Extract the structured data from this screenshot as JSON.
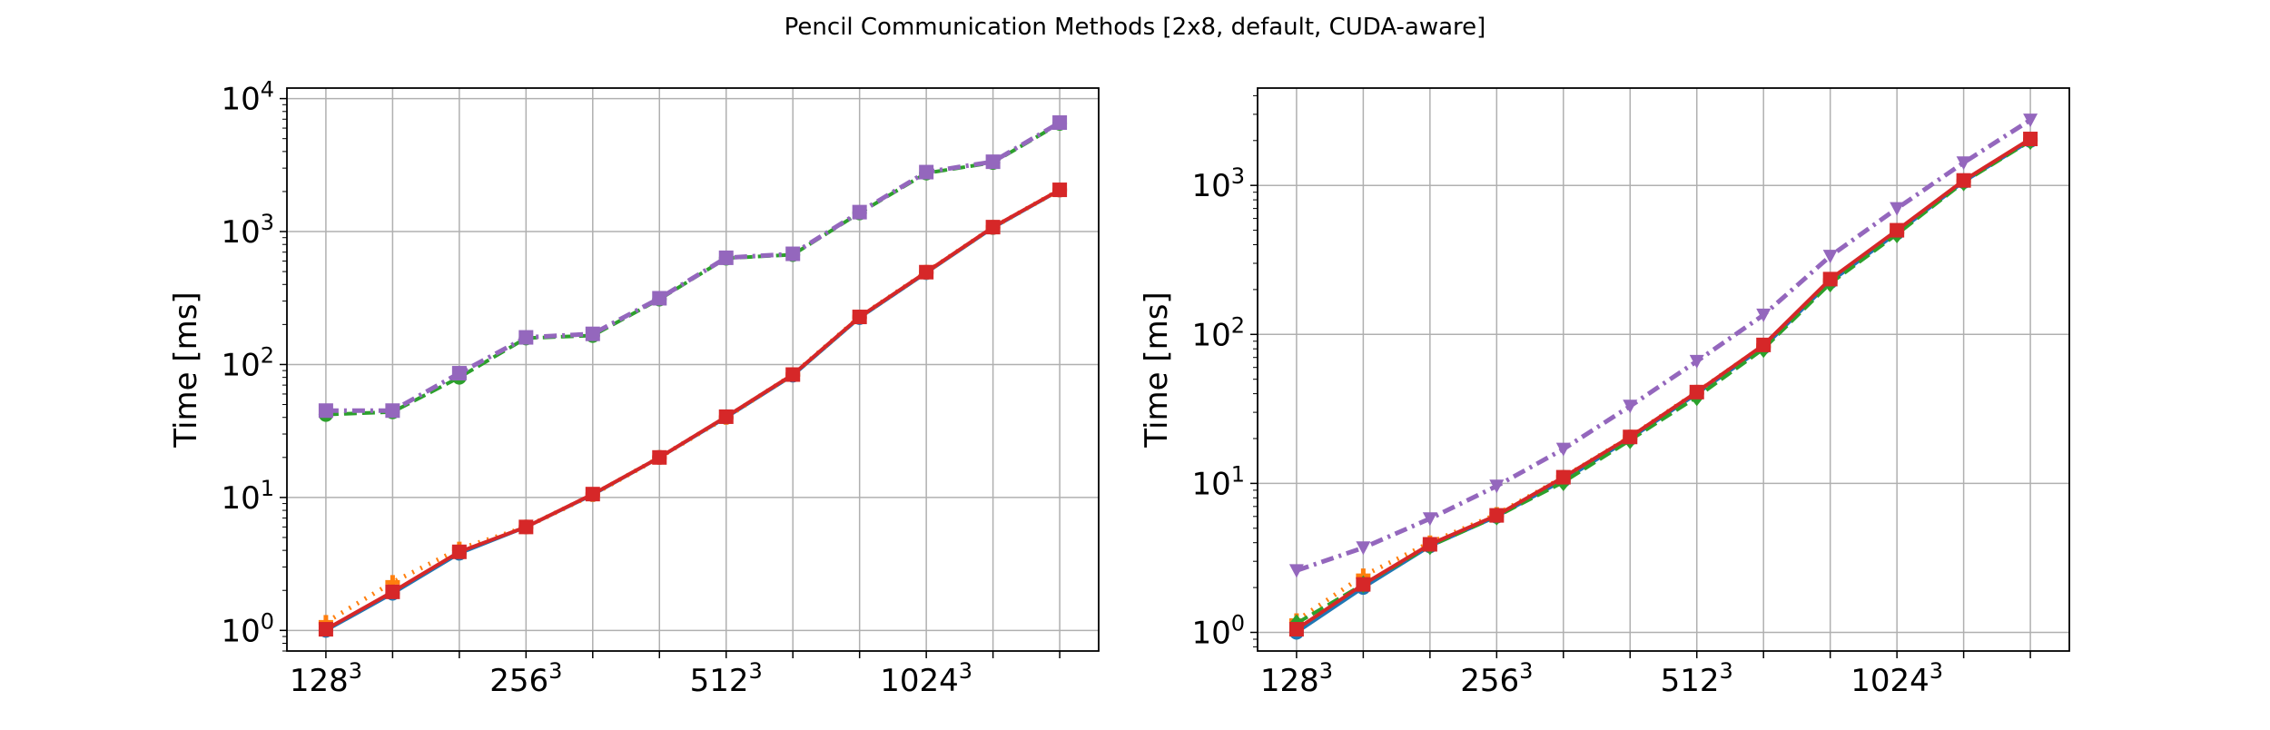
{
  "figure": {
    "title": "Pencil Communication Methods [2x8, default, CUDA-aware]"
  },
  "colors": {
    "blue": "#1f77b4",
    "orange": "#ff7f0e",
    "green": "#2ca02c",
    "red": "#d62728",
    "purple": "#9467bd",
    "grid": "#b0b0b0"
  },
  "chart_data": [
    {
      "type": "line",
      "xlabel": "",
      "ylabel": "Time [ms]",
      "yscale": "log",
      "ylim": [
        0.7,
        12000
      ],
      "grid": true,
      "x": [
        128,
        160,
        192,
        256,
        320,
        384,
        512,
        640,
        768,
        1024,
        1280,
        1536
      ],
      "xticks": [
        {
          "x": 128,
          "base": "128",
          "exp": "3"
        },
        {
          "x": 256,
          "base": "256",
          "exp": "3"
        },
        {
          "x": 512,
          "base": "512",
          "exp": "3"
        },
        {
          "x": 1024,
          "base": "1024",
          "exp": "3"
        }
      ],
      "yticks": [
        {
          "y": 1,
          "base": "10",
          "exp": "0"
        },
        {
          "y": 10,
          "base": "10",
          "exp": "1"
        },
        {
          "y": 100,
          "base": "10",
          "exp": "2"
        },
        {
          "y": 1000,
          "base": "10",
          "exp": "3"
        },
        {
          "y": 10000,
          "base": "10",
          "exp": "4"
        }
      ],
      "series": [
        {
          "color": "blue",
          "dash": "solid",
          "marker": "circle",
          "values": [
            1.0,
            1.9,
            3.8,
            6.0,
            10.5,
            20.0,
            40.0,
            83.0,
            225.0,
            490.0,
            1070.0,
            2050.0
          ]
        },
        {
          "color": "orange",
          "dash": "dotted",
          "marker": "cross",
          "values": [
            1.15,
            2.3,
            4.1,
            6.0,
            10.5,
            20.0,
            40.0,
            84.0,
            228.0,
            495.0,
            1075.0,
            2055.0
          ]
        },
        {
          "color": "green",
          "dash": "dashed",
          "marker": "circle",
          "values": [
            42.0,
            44.0,
            80.0,
            158.0,
            165.0,
            310.0,
            630.0,
            670.0,
            1380.0,
            2750.0,
            3300.0,
            6500.0
          ]
        },
        {
          "color": "purple",
          "dash": "dashdot",
          "marker": "square",
          "values": [
            45.0,
            45.0,
            86.0,
            160.0,
            170.0,
            315.0,
            635.0,
            680.0,
            1400.0,
            2800.0,
            3350.0,
            6600.0
          ]
        },
        {
          "color": "red",
          "dash": "solid",
          "marker": "square",
          "values": [
            1.02,
            1.95,
            3.9,
            6.0,
            10.6,
            20.0,
            40.5,
            84.0,
            228.0,
            495.0,
            1080.0,
            2060.0
          ]
        }
      ]
    },
    {
      "type": "line",
      "xlabel": "",
      "ylabel": "Time [ms]",
      "yscale": "log",
      "ylim": [
        0.75,
        4500
      ],
      "grid": true,
      "x": [
        128,
        160,
        192,
        256,
        320,
        384,
        512,
        640,
        768,
        1024,
        1280,
        1536
      ],
      "xticks": [
        {
          "x": 128,
          "base": "128",
          "exp": "3"
        },
        {
          "x": 256,
          "base": "256",
          "exp": "3"
        },
        {
          "x": 512,
          "base": "512",
          "exp": "3"
        },
        {
          "x": 1024,
          "base": "1024",
          "exp": "3"
        }
      ],
      "yticks": [
        {
          "y": 1,
          "base": "10",
          "exp": "0"
        },
        {
          "y": 10,
          "base": "10",
          "exp": "1"
        },
        {
          "y": 100,
          "base": "10",
          "exp": "2"
        },
        {
          "y": 1000,
          "base": "10",
          "exp": "3"
        }
      ],
      "series": [
        {
          "color": "blue",
          "dash": "solid",
          "marker": "circle",
          "values": [
            1.0,
            2.0,
            3.8,
            6.0,
            10.5,
            20.0,
            40.0,
            82.0,
            225.0,
            480.0,
            1060.0,
            2000.0
          ]
        },
        {
          "color": "orange",
          "dash": "dotted",
          "marker": "cross",
          "values": [
            1.2,
            2.4,
            4.0,
            6.2,
            11.0,
            20.5,
            41.0,
            84.0,
            230.0,
            490.0,
            1070.0,
            2020.0
          ]
        },
        {
          "color": "green",
          "dash": "dashed",
          "marker": "diamond",
          "values": [
            1.15,
            2.1,
            3.8,
            6.0,
            10.2,
            19.5,
            38.0,
            80.0,
            220.0,
            470.0,
            1050.0,
            1990.0
          ]
        },
        {
          "color": "purple",
          "dash": "dashdot",
          "marker": "triangle-down",
          "values": [
            2.6,
            3.7,
            5.8,
            9.6,
            17.0,
            33.0,
            66.0,
            135.0,
            335.0,
            700.0,
            1420.0,
            2750.0
          ]
        },
        {
          "color": "red",
          "dash": "solid",
          "marker": "square",
          "values": [
            1.05,
            2.1,
            3.9,
            6.1,
            11.0,
            20.5,
            41.0,
            85.0,
            235.0,
            500.0,
            1080.0,
            2050.0
          ]
        }
      ]
    }
  ]
}
